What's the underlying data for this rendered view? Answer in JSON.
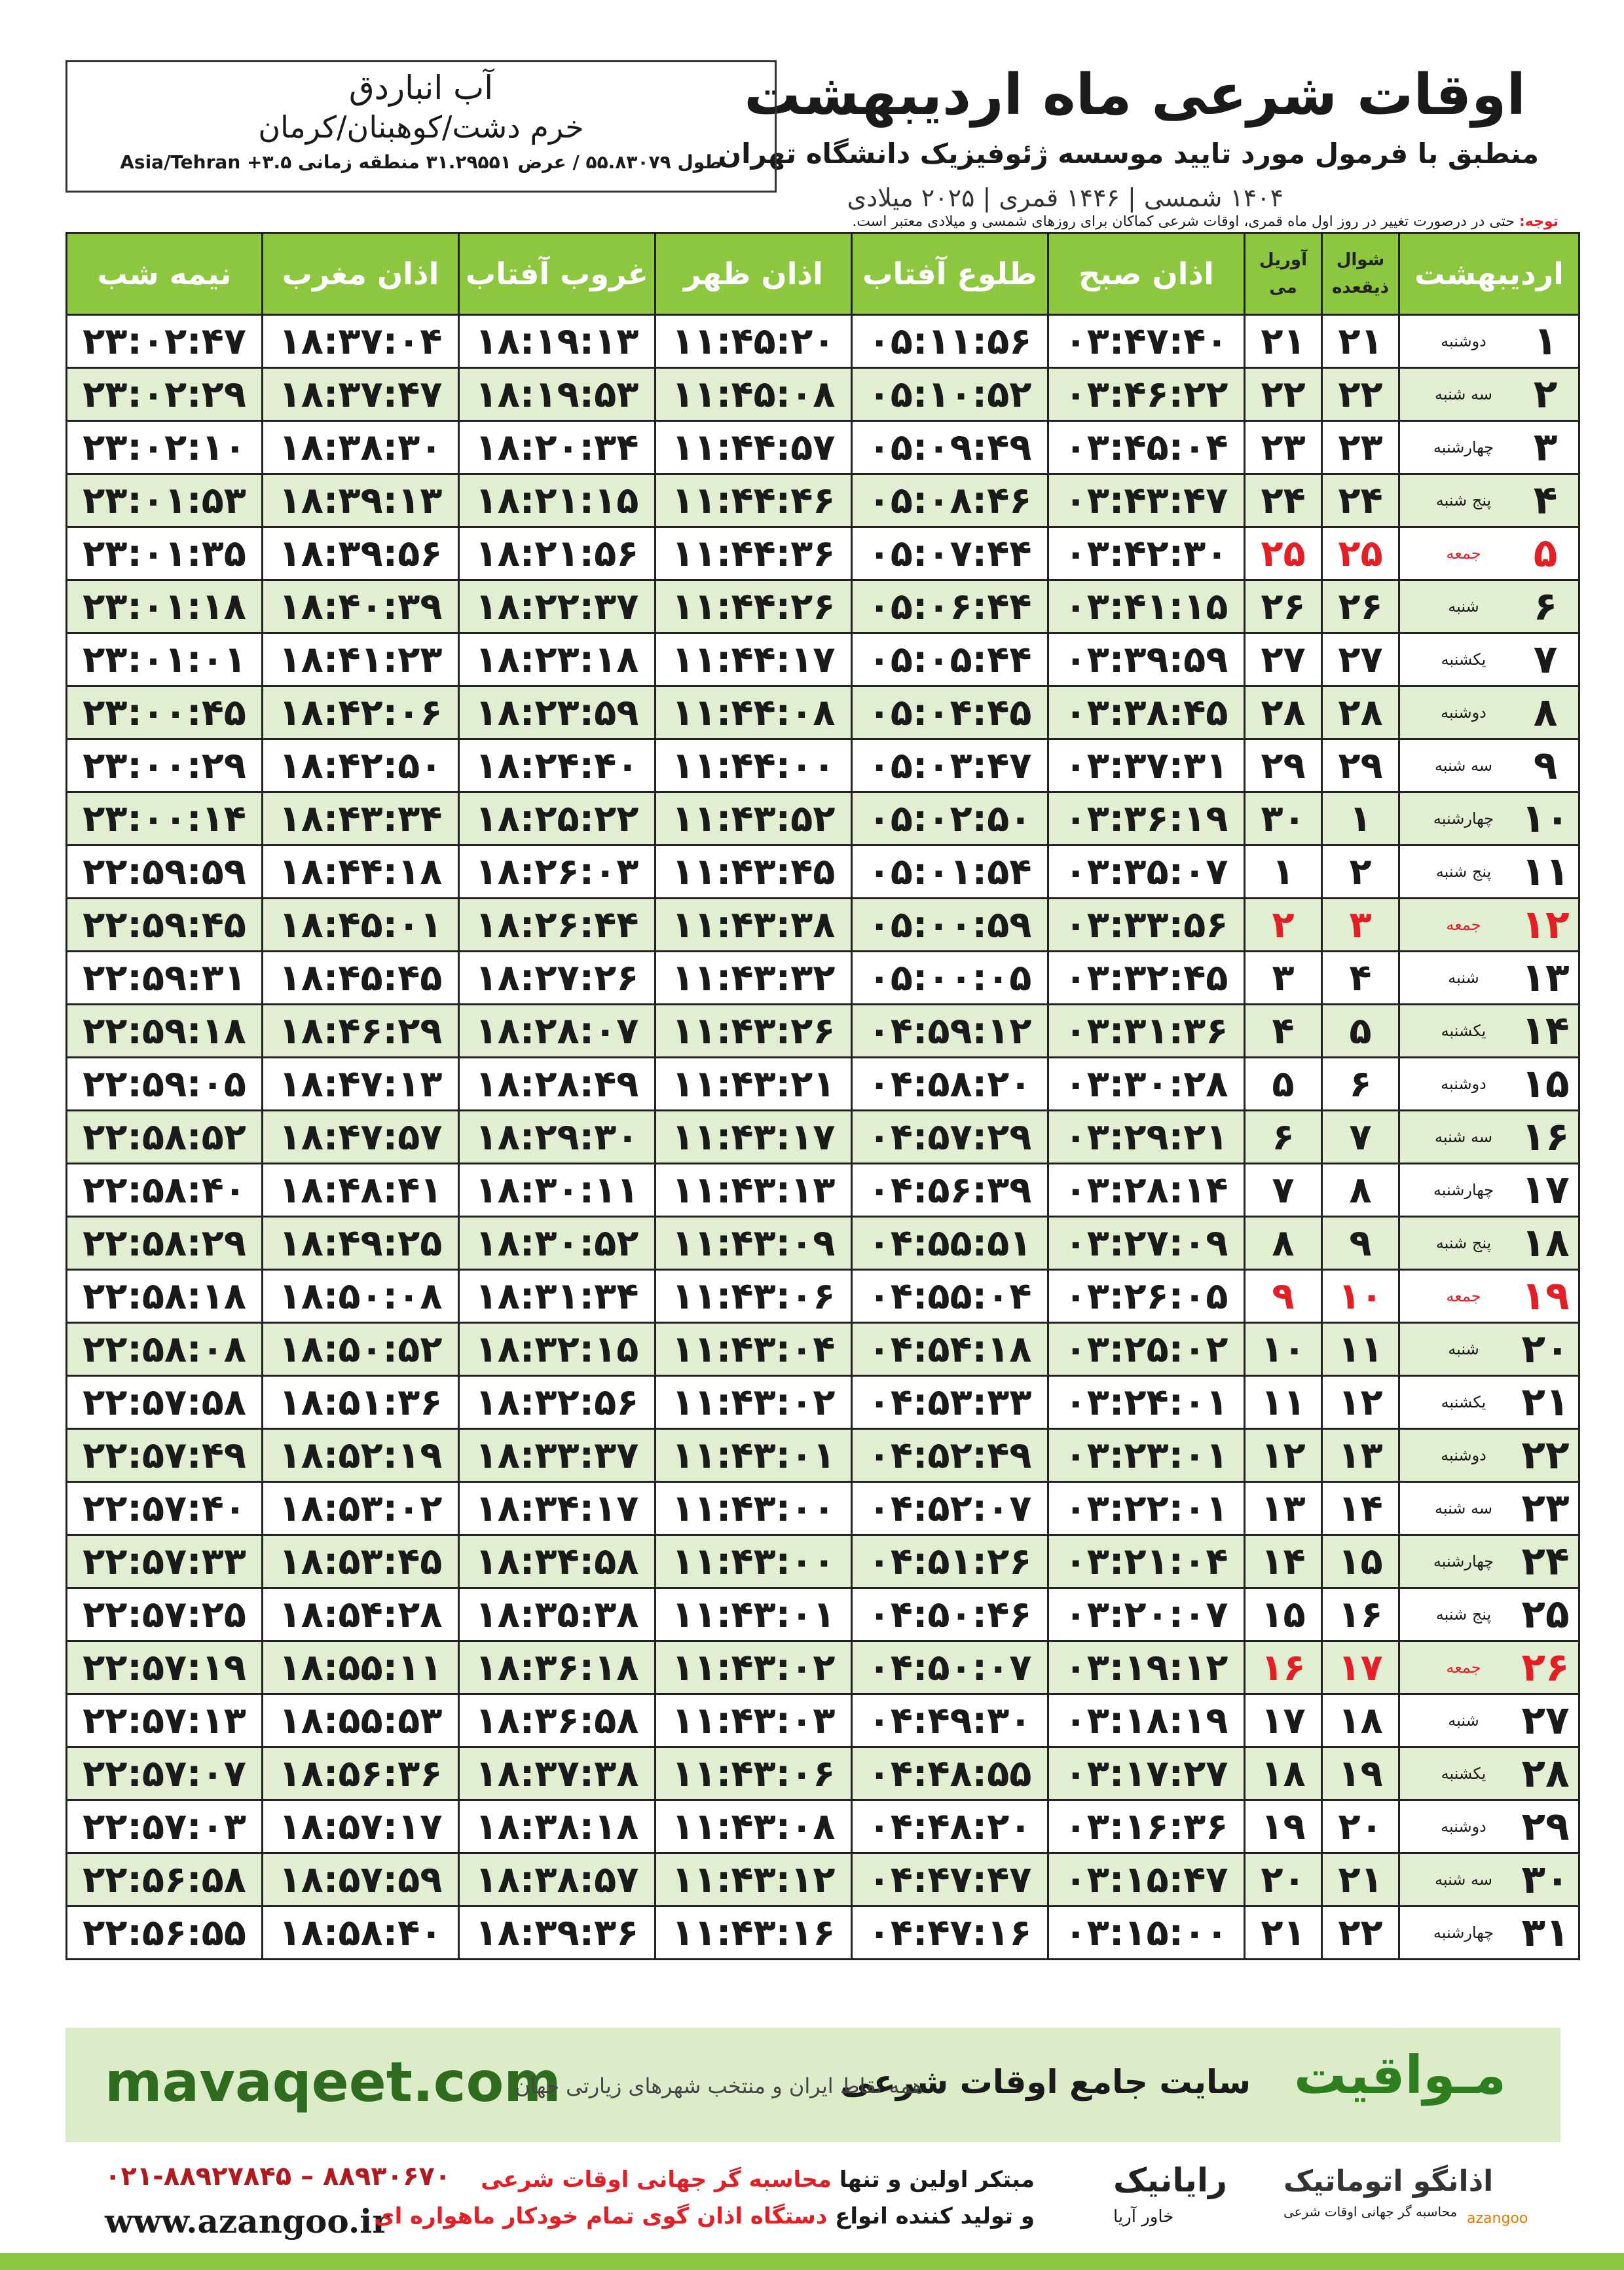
{
  "header": {
    "title": "اوقات شرعی ماه اردیبهشت",
    "subtitle": "منطبق با فرمول مورد تایید موسسه ژئوفیزیک دانشگاه تهران",
    "dates": "۱۴۰۴ شمسی | ۱۴۴۶ قمری | ۲۰۲۵ میلادی"
  },
  "location": {
    "name": "آب انباردق",
    "region": "خرم دشت/کوهبنان/کرمان",
    "coords": "طول ۵۵.۸۳۰۷۹ / عرض ۳۱.۲۹۵۵۱ منطقه زمانی ۳.۵+ Asia/Tehran"
  },
  "note": {
    "label": "توجه:",
    "text": "حتی در درصورت تغییر در روز اول ماه قمری، اوقات شرعی کماکان برای روزهای شمسی و میلادی معتبر است."
  },
  "table": {
    "header": [
      "اردیبهشت",
      [
        "شوال",
        "ذیقعده"
      ],
      [
        "آوریل",
        "می"
      ],
      "اذان صبح",
      "طلوع آفتاب",
      "اذان ظهر",
      "غروب آفتاب",
      "اذان مغرب",
      "نیمه شب"
    ],
    "holiday_color": "#e31e24",
    "rows": [
      {
        "cells": [
          "۱",
          "دوشنبه",
          "۲۱",
          "۲۱",
          "۰۳:۴۷:۴۰",
          "۰۵:۱۱:۵۶",
          "۱۱:۴۵:۲۰",
          "۱۸:۱۹:۱۳",
          "۱۸:۳۷:۰۴",
          "۲۳:۰۲:۴۷"
        ]
      },
      {
        "cells": [
          "۲",
          "سه شنبه",
          "۲۲",
          "۲۲",
          "۰۳:۴۶:۲۲",
          "۰۵:۱۰:۵۲",
          "۱۱:۴۵:۰۸",
          "۱۸:۱۹:۵۳",
          "۱۸:۳۷:۴۷",
          "۲۳:۰۲:۲۹"
        ]
      },
      {
        "cells": [
          "۳",
          "چهارشنبه",
          "۲۳",
          "۲۳",
          "۰۳:۴۵:۰۴",
          "۰۵:۰۹:۴۹",
          "۱۱:۴۴:۵۷",
          "۱۸:۲۰:۳۴",
          "۱۸:۳۸:۳۰",
          "۲۳:۰۲:۱۰"
        ]
      },
      {
        "cells": [
          "۴",
          "پنج شنبه",
          "۲۴",
          "۲۴",
          "۰۳:۴۳:۴۷",
          "۰۵:۰۸:۴۶",
          "۱۱:۴۴:۴۶",
          "۱۸:۲۱:۱۵",
          "۱۸:۳۹:۱۳",
          "۲۳:۰۱:۵۳"
        ]
      },
      {
        "cells": [
          "۵",
          "جمعه",
          "۲۵",
          "۲۵",
          "۰۳:۴۲:۳۰",
          "۰۵:۰۷:۴۴",
          "۱۱:۴۴:۳۶",
          "۱۸:۲۱:۵۶",
          "۱۸:۳۹:۵۶",
          "۲۳:۰۱:۳۵"
        ],
        "holiday": true
      },
      {
        "cells": [
          "۶",
          "شنبه",
          "۲۶",
          "۲۶",
          "۰۳:۴۱:۱۵",
          "۰۵:۰۶:۴۴",
          "۱۱:۴۴:۲۶",
          "۱۸:۲۲:۳۷",
          "۱۸:۴۰:۳۹",
          "۲۳:۰۱:۱۸"
        ]
      },
      {
        "cells": [
          "۷",
          "یکشنبه",
          "۲۷",
          "۲۷",
          "۰۳:۳۹:۵۹",
          "۰۵:۰۵:۴۴",
          "۱۱:۴۴:۱۷",
          "۱۸:۲۳:۱۸",
          "۱۸:۴۱:۲۳",
          "۲۳:۰۱:۰۱"
        ]
      },
      {
        "cells": [
          "۸",
          "دوشنبه",
          "۲۸",
          "۲۸",
          "۰۳:۳۸:۴۵",
          "۰۵:۰۴:۴۵",
          "۱۱:۴۴:۰۸",
          "۱۸:۲۳:۵۹",
          "۱۸:۴۲:۰۶",
          "۲۳:۰۰:۴۵"
        ]
      },
      {
        "cells": [
          "۹",
          "سه شنبه",
          "۲۹",
          "۲۹",
          "۰۳:۳۷:۳۱",
          "۰۵:۰۳:۴۷",
          "۱۱:۴۴:۰۰",
          "۱۸:۲۴:۴۰",
          "۱۸:۴۲:۵۰",
          "۲۳:۰۰:۲۹"
        ]
      },
      {
        "cells": [
          "۱۰",
          "چهارشنبه",
          "۱",
          "۳۰",
          "۰۳:۳۶:۱۹",
          "۰۵:۰۲:۵۰",
          "۱۱:۴۳:۵۲",
          "۱۸:۲۵:۲۲",
          "۱۸:۴۳:۳۴",
          "۲۳:۰۰:۱۴"
        ]
      },
      {
        "cells": [
          "۱۱",
          "پنج شنبه",
          "۲",
          "۱",
          "۰۳:۳۵:۰۷",
          "۰۵:۰۱:۵۴",
          "۱۱:۴۳:۴۵",
          "۱۸:۲۶:۰۳",
          "۱۸:۴۴:۱۸",
          "۲۲:۵۹:۵۹"
        ]
      },
      {
        "cells": [
          "۱۲",
          "جمعه",
          "۳",
          "۲",
          "۰۳:۳۳:۵۶",
          "۰۵:۰۰:۵۹",
          "۱۱:۴۳:۳۸",
          "۱۸:۲۶:۴۴",
          "۱۸:۴۵:۰۱",
          "۲۲:۵۹:۴۵"
        ],
        "holiday": true
      },
      {
        "cells": [
          "۱۳",
          "شنبه",
          "۴",
          "۳",
          "۰۳:۳۲:۴۵",
          "۰۵:۰۰:۰۵",
          "۱۱:۴۳:۳۲",
          "۱۸:۲۷:۲۶",
          "۱۸:۴۵:۴۵",
          "۲۲:۵۹:۳۱"
        ]
      },
      {
        "cells": [
          "۱۴",
          "یکشنبه",
          "۵",
          "۴",
          "۰۳:۳۱:۳۶",
          "۰۴:۵۹:۱۲",
          "۱۱:۴۳:۲۶",
          "۱۸:۲۸:۰۷",
          "۱۸:۴۶:۲۹",
          "۲۲:۵۹:۱۸"
        ]
      },
      {
        "cells": [
          "۱۵",
          "دوشنبه",
          "۶",
          "۵",
          "۰۳:۳۰:۲۸",
          "۰۴:۵۸:۲۰",
          "۱۱:۴۳:۲۱",
          "۱۸:۲۸:۴۹",
          "۱۸:۴۷:۱۳",
          "۲۲:۵۹:۰۵"
        ]
      },
      {
        "cells": [
          "۱۶",
          "سه شنبه",
          "۷",
          "۶",
          "۰۳:۲۹:۲۱",
          "۰۴:۵۷:۲۹",
          "۱۱:۴۳:۱۷",
          "۱۸:۲۹:۳۰",
          "۱۸:۴۷:۵۷",
          "۲۲:۵۸:۵۲"
        ]
      },
      {
        "cells": [
          "۱۷",
          "چهارشنبه",
          "۸",
          "۷",
          "۰۳:۲۸:۱۴",
          "۰۴:۵۶:۳۹",
          "۱۱:۴۳:۱۳",
          "۱۸:۳۰:۱۱",
          "۱۸:۴۸:۴۱",
          "۲۲:۵۸:۴۰"
        ]
      },
      {
        "cells": [
          "۱۸",
          "پنج شنبه",
          "۹",
          "۸",
          "۰۳:۲۷:۰۹",
          "۰۴:۵۵:۵۱",
          "۱۱:۴۳:۰۹",
          "۱۸:۳۰:۵۲",
          "۱۸:۴۹:۲۵",
          "۲۲:۵۸:۲۹"
        ]
      },
      {
        "cells": [
          "۱۹",
          "جمعه",
          "۱۰",
          "۹",
          "۰۳:۲۶:۰۵",
          "۰۴:۵۵:۰۴",
          "۱۱:۴۳:۰۶",
          "۱۸:۳۱:۳۴",
          "۱۸:۵۰:۰۸",
          "۲۲:۵۸:۱۸"
        ],
        "holiday": true
      },
      {
        "cells": [
          "۲۰",
          "شنبه",
          "۱۱",
          "۱۰",
          "۰۳:۲۵:۰۲",
          "۰۴:۵۴:۱۸",
          "۱۱:۴۳:۰۴",
          "۱۸:۳۲:۱۵",
          "۱۸:۵۰:۵۲",
          "۲۲:۵۸:۰۸"
        ]
      },
      {
        "cells": [
          "۲۱",
          "یکشنبه",
          "۱۲",
          "۱۱",
          "۰۳:۲۴:۰۱",
          "۰۴:۵۳:۳۳",
          "۱۱:۴۳:۰۲",
          "۱۸:۳۲:۵۶",
          "۱۸:۵۱:۳۶",
          "۲۲:۵۷:۵۸"
        ]
      },
      {
        "cells": [
          "۲۲",
          "دوشنبه",
          "۱۳",
          "۱۲",
          "۰۳:۲۳:۰۱",
          "۰۴:۵۲:۴۹",
          "۱۱:۴۳:۰۱",
          "۱۸:۳۳:۳۷",
          "۱۸:۵۲:۱۹",
          "۲۲:۵۷:۴۹"
        ]
      },
      {
        "cells": [
          "۲۳",
          "سه شنبه",
          "۱۴",
          "۱۳",
          "۰۳:۲۲:۰۱",
          "۰۴:۵۲:۰۷",
          "۱۱:۴۳:۰۰",
          "۱۸:۳۴:۱۷",
          "۱۸:۵۳:۰۲",
          "۲۲:۵۷:۴۰"
        ]
      },
      {
        "cells": [
          "۲۴",
          "چهارشنبه",
          "۱۵",
          "۱۴",
          "۰۳:۲۱:۰۴",
          "۰۴:۵۱:۲۶",
          "۱۱:۴۳:۰۰",
          "۱۸:۳۴:۵۸",
          "۱۸:۵۳:۴۵",
          "۲۲:۵۷:۳۳"
        ]
      },
      {
        "cells": [
          "۲۵",
          "پنج شنبه",
          "۱۶",
          "۱۵",
          "۰۳:۲۰:۰۷",
          "۰۴:۵۰:۴۶",
          "۱۱:۴۳:۰۱",
          "۱۸:۳۵:۳۸",
          "۱۸:۵۴:۲۸",
          "۲۲:۵۷:۲۵"
        ]
      },
      {
        "cells": [
          "۲۶",
          "جمعه",
          "۱۷",
          "۱۶",
          "۰۳:۱۹:۱۲",
          "۰۴:۵۰:۰۷",
          "۱۱:۴۳:۰۲",
          "۱۸:۳۶:۱۸",
          "۱۸:۵۵:۱۱",
          "۲۲:۵۷:۱۹"
        ],
        "holiday": true
      },
      {
        "cells": [
          "۲۷",
          "شنبه",
          "۱۸",
          "۱۷",
          "۰۳:۱۸:۱۹",
          "۰۴:۴۹:۳۰",
          "۱۱:۴۳:۰۳",
          "۱۸:۳۶:۵۸",
          "۱۸:۵۵:۵۳",
          "۲۲:۵۷:۱۳"
        ]
      },
      {
        "cells": [
          "۲۸",
          "یکشنبه",
          "۱۹",
          "۱۸",
          "۰۳:۱۷:۲۷",
          "۰۴:۴۸:۵۵",
          "۱۱:۴۳:۰۶",
          "۱۸:۳۷:۳۸",
          "۱۸:۵۶:۳۶",
          "۲۲:۵۷:۰۷"
        ]
      },
      {
        "cells": [
          "۲۹",
          "دوشنبه",
          "۲۰",
          "۱۹",
          "۰۳:۱۶:۳۶",
          "۰۴:۴۸:۲۰",
          "۱۱:۴۳:۰۸",
          "۱۸:۳۸:۱۸",
          "۱۸:۵۷:۱۷",
          "۲۲:۵۷:۰۳"
        ]
      },
      {
        "cells": [
          "۳۰",
          "سه شنبه",
          "۲۱",
          "۲۰",
          "۰۳:۱۵:۴۷",
          "۰۴:۴۷:۴۷",
          "۱۱:۴۳:۱۲",
          "۱۸:۳۸:۵۷",
          "۱۸:۵۷:۵۹",
          "۲۲:۵۶:۵۸"
        ]
      },
      {
        "cells": [
          "۳۱",
          "چهارشنبه",
          "۲۲",
          "۲۱",
          "۰۳:۱۵:۰۰",
          "۰۴:۴۷:۱۶",
          "۱۱:۴۳:۱۶",
          "۱۸:۳۹:۳۶",
          "۱۸:۵۸:۴۰",
          "۲۲:۵۶:۵۵"
        ]
      }
    ]
  },
  "footer": {
    "site": "mavaqeet.com",
    "brand": "مـواقیت",
    "slogan": "سایت جامع اوقات شرعی",
    "coverage": "همه نقاط ایران و منتخب شهرهای زیارتی جهان"
  },
  "contact": {
    "phone": "۰۲۱-۸۸۹۲۷۸۴۵ – ۸۸۹۳۰۶۷۰",
    "web": "www.azangoo.ir",
    "line1": [
      "مبتکر اولین و تنها",
      "محاسبه گر جهانی اوقات شرعی"
    ],
    "line2": [
      "و تولید کننده انواع",
      "دستگاه اذان گوی تمام خودکار ماهواره ای"
    ],
    "logo1": "رایانیک",
    "logo1_sub": "خاور آریا",
    "logo2": "اذانگو اتوماتیک",
    "logo2_sub": "محاسبه گر جهانی اوقات شرعی",
    "logo2_en": "azangoo"
  }
}
